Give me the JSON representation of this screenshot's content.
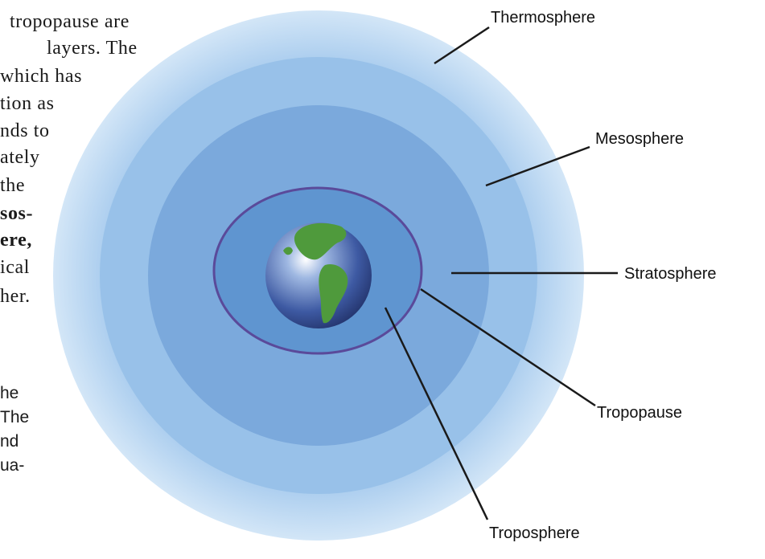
{
  "paragraph_serif": {
    "lines": [
      "tropopause are",
      "layers. The",
      "which has",
      "tion as",
      "nds to",
      "ately",
      "the",
      "sos-",
      "ere,",
      "ical",
      "her."
    ]
  },
  "paragraph_sans": {
    "lines": [
      "he",
      "The",
      "nd",
      "ua-"
    ]
  },
  "diagram": {
    "labels": {
      "thermosphere": "Thermosphere",
      "mesosphere": "Mesosphere",
      "stratosphere": "Stratosphere",
      "tropopause": "Tropopause",
      "troposphere": "Troposphere"
    },
    "colors": {
      "thermosphere": "#c3dcf2",
      "mesosphere": "#96c0e8",
      "stratosphere": "#7aa9dc",
      "troposphere": "#5f95d0",
      "tropopause_line": "#5a4a9a",
      "ocean": "#3f5fa8",
      "land": "#4f9a3c",
      "leader_line": "#1a1a1a"
    },
    "icons": [
      "earth-globe-icon"
    ]
  }
}
